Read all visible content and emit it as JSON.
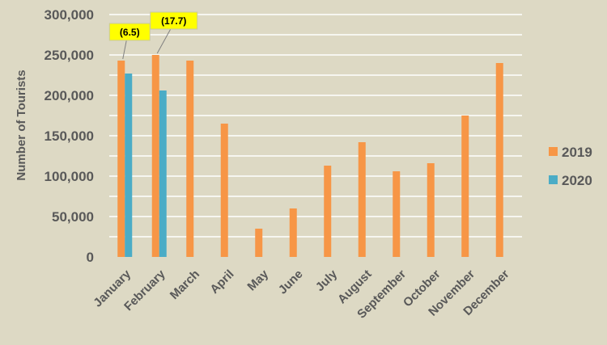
{
  "chart_data": {
    "type": "bar",
    "categories": [
      "January",
      "February",
      "March",
      "April",
      "May",
      "June",
      "July",
      "August",
      "September",
      "October",
      "November",
      "December"
    ],
    "series": [
      {
        "name": "2019",
        "values": [
          243000,
          250000,
          243000,
          165000,
          35000,
          60000,
          113000,
          142000,
          106000,
          116000,
          175000,
          240000
        ]
      },
      {
        "name": "2020",
        "values": [
          227000,
          206000,
          null,
          null,
          null,
          null,
          null,
          null,
          null,
          null,
          null,
          null
        ]
      }
    ],
    "ylabel": "Number of Tourists",
    "xlabel": "",
    "ylim": [
      0,
      300000
    ],
    "yticks": [
      "0",
      "50,000",
      "100,000",
      "150,000",
      "200,000",
      "250,000",
      "300,000"
    ],
    "grid": true,
    "legend": "right",
    "annotations": [
      {
        "category": "January",
        "text": "(6.5)"
      },
      {
        "category": "February",
        "text": "(17.7)"
      }
    ],
    "colors": {
      "2019": "#f79646",
      "2020": "#4bacc6",
      "grid": "#ffffff",
      "label_bg": "#ffff00",
      "text": "#595959"
    }
  }
}
